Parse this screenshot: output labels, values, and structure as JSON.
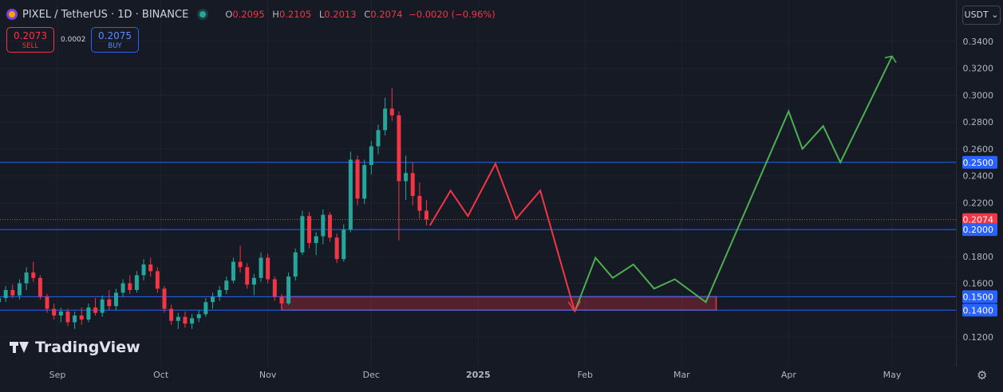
{
  "header": {
    "symbol": "PIXEL / TetherUS · 1D · BINANCE",
    "ohlc": {
      "o_label": "O",
      "o": "0.2095",
      "h_label": "H",
      "h": "0.2105",
      "l_label": "L",
      "l": "0.2013",
      "c_label": "C",
      "c": "0.2074",
      "change": "−0.0020 (−0.96%)"
    }
  },
  "trade": {
    "sell_price": "0.2073",
    "sell_label": "SELL",
    "spread": "0.0002",
    "buy_price": "0.2075",
    "buy_label": "BUY"
  },
  "currency_button": "USDT",
  "watermark": "TradingView",
  "colors": {
    "up": "#26a69a",
    "down": "#f23645",
    "hline": "#2962ff",
    "path_down": "#f23645",
    "path_up": "#4caf50",
    "zone": "#f23645",
    "background": "#161a25"
  },
  "chart_data": {
    "type": "candlestick",
    "instrument": "PIXEL / TetherUS",
    "interval": "1D",
    "y_ticks": [
      "0.3400",
      "0.3200",
      "0.3000",
      "0.2800",
      "0.2600",
      "0.2400",
      "0.2200",
      "0.1800",
      "0.1600",
      "0.1200"
    ],
    "x_ticks": [
      "Sep",
      "Oct",
      "Nov",
      "Dec",
      "2025",
      "Feb",
      "Mar",
      "Apr",
      "May"
    ],
    "ylim": [
      0.11,
      0.355
    ],
    "grid": true,
    "horizontal_lines": [
      0.25,
      0.2,
      0.15,
      0.14
    ],
    "price_labels": [
      {
        "label": "0.2500",
        "value": 0.25,
        "color": "#2962ff"
      },
      {
        "label": "0.2074",
        "value": 0.2074,
        "color": "#f23645"
      },
      {
        "label": "0.2000",
        "value": 0.2,
        "color": "#2962ff"
      },
      {
        "label": "0.1500",
        "value": 0.15,
        "color": "#2962ff"
      },
      {
        "label": "0.1400",
        "value": 0.14,
        "color": "#2962ff"
      }
    ],
    "last_price": 0.2074,
    "zone": {
      "start": "2024-11-05",
      "end": "2025-03-11",
      "low": 0.14,
      "high": 0.15
    },
    "projection_down": [
      [
        "2024-12-18",
        0.203
      ],
      [
        "2024-12-24",
        0.229
      ],
      [
        "2024-12-29",
        0.21
      ],
      [
        "2025-01-06",
        0.249
      ],
      [
        "2025-01-12",
        0.208
      ],
      [
        "2025-01-19",
        0.229
      ],
      [
        "2025-01-29",
        0.139
      ]
    ],
    "projection_up": [
      [
        "2025-01-29",
        0.139
      ],
      [
        "2025-02-04",
        0.179
      ],
      [
        "2025-02-09",
        0.164
      ],
      [
        "2025-02-15",
        0.174
      ],
      [
        "2025-02-21",
        0.156
      ],
      [
        "2025-02-27",
        0.163
      ],
      [
        "2025-03-08",
        0.146
      ],
      [
        "2025-04-01",
        0.288
      ],
      [
        "2025-04-05",
        0.26
      ],
      [
        "2025-04-11",
        0.277
      ],
      [
        "2025-04-16",
        0.25
      ],
      [
        "2025-05-01",
        0.329
      ]
    ],
    "candles": [
      [
        "2024-08-15",
        0.146,
        0.153,
        0.142,
        0.149
      ],
      [
        "2024-08-17",
        0.149,
        0.158,
        0.146,
        0.155
      ],
      [
        "2024-08-19",
        0.155,
        0.159,
        0.149,
        0.151
      ],
      [
        "2024-08-21",
        0.151,
        0.163,
        0.148,
        0.16
      ],
      [
        "2024-08-23",
        0.16,
        0.172,
        0.155,
        0.168
      ],
      [
        "2024-08-25",
        0.168,
        0.176,
        0.161,
        0.164
      ],
      [
        "2024-08-27",
        0.164,
        0.166,
        0.148,
        0.15
      ],
      [
        "2024-08-29",
        0.15,
        0.152,
        0.138,
        0.141
      ],
      [
        "2024-08-31",
        0.141,
        0.145,
        0.133,
        0.136
      ],
      [
        "2024-09-02",
        0.136,
        0.142,
        0.131,
        0.139
      ],
      [
        "2024-09-04",
        0.139,
        0.141,
        0.128,
        0.131
      ],
      [
        "2024-09-06",
        0.131,
        0.139,
        0.126,
        0.136
      ],
      [
        "2024-09-08",
        0.136,
        0.142,
        0.129,
        0.133
      ],
      [
        "2024-09-10",
        0.133,
        0.145,
        0.131,
        0.142
      ],
      [
        "2024-09-12",
        0.142,
        0.149,
        0.136,
        0.138
      ],
      [
        "2024-09-14",
        0.138,
        0.151,
        0.135,
        0.148
      ],
      [
        "2024-09-16",
        0.148,
        0.155,
        0.14,
        0.143
      ],
      [
        "2024-09-18",
        0.143,
        0.156,
        0.14,
        0.153
      ],
      [
        "2024-09-20",
        0.153,
        0.163,
        0.15,
        0.16
      ],
      [
        "2024-09-22",
        0.16,
        0.166,
        0.152,
        0.155
      ],
      [
        "2024-09-24",
        0.155,
        0.169,
        0.153,
        0.166
      ],
      [
        "2024-09-26",
        0.166,
        0.178,
        0.162,
        0.174
      ],
      [
        "2024-09-28",
        0.174,
        0.179,
        0.165,
        0.169
      ],
      [
        "2024-09-30",
        0.169,
        0.172,
        0.153,
        0.156
      ],
      [
        "2024-10-02",
        0.156,
        0.158,
        0.138,
        0.141
      ],
      [
        "2024-10-04",
        0.141,
        0.144,
        0.129,
        0.132
      ],
      [
        "2024-10-06",
        0.132,
        0.138,
        0.126,
        0.135
      ],
      [
        "2024-10-08",
        0.135,
        0.139,
        0.127,
        0.13
      ],
      [
        "2024-10-10",
        0.13,
        0.137,
        0.126,
        0.134
      ],
      [
        "2024-10-12",
        0.134,
        0.14,
        0.131,
        0.137
      ],
      [
        "2024-10-14",
        0.137,
        0.149,
        0.135,
        0.146
      ],
      [
        "2024-10-16",
        0.146,
        0.153,
        0.141,
        0.15
      ],
      [
        "2024-10-18",
        0.15,
        0.158,
        0.147,
        0.155
      ],
      [
        "2024-10-20",
        0.155,
        0.165,
        0.152,
        0.162
      ],
      [
        "2024-10-22",
        0.162,
        0.179,
        0.16,
        0.176
      ],
      [
        "2024-10-24",
        0.176,
        0.188,
        0.168,
        0.172
      ],
      [
        "2024-10-26",
        0.172,
        0.175,
        0.156,
        0.159
      ],
      [
        "2024-10-28",
        0.159,
        0.167,
        0.151,
        0.164
      ],
      [
        "2024-10-30",
        0.164,
        0.183,
        0.161,
        0.179
      ],
      [
        "2024-11-01",
        0.179,
        0.182,
        0.16,
        0.163
      ],
      [
        "2024-11-03",
        0.163,
        0.165,
        0.147,
        0.15
      ],
      [
        "2024-11-05",
        0.15,
        0.152,
        0.141,
        0.145
      ],
      [
        "2024-11-07",
        0.145,
        0.168,
        0.144,
        0.165
      ],
      [
        "2024-11-09",
        0.165,
        0.186,
        0.162,
        0.183
      ],
      [
        "2024-11-11",
        0.183,
        0.214,
        0.181,
        0.21
      ],
      [
        "2024-11-13",
        0.21,
        0.213,
        0.186,
        0.19
      ],
      [
        "2024-11-15",
        0.19,
        0.198,
        0.181,
        0.195
      ],
      [
        "2024-11-17",
        0.195,
        0.215,
        0.189,
        0.211
      ],
      [
        "2024-11-19",
        0.211,
        0.213,
        0.191,
        0.194
      ],
      [
        "2024-11-21",
        0.194,
        0.197,
        0.175,
        0.178
      ],
      [
        "2024-11-23",
        0.178,
        0.204,
        0.176,
        0.2
      ],
      [
        "2024-11-25",
        0.2,
        0.258,
        0.198,
        0.252
      ],
      [
        "2024-11-27",
        0.252,
        0.255,
        0.218,
        0.223
      ],
      [
        "2024-11-29",
        0.223,
        0.252,
        0.219,
        0.248
      ],
      [
        "2024-12-01",
        0.248,
        0.266,
        0.241,
        0.262
      ],
      [
        "2024-12-03",
        0.262,
        0.278,
        0.256,
        0.274
      ],
      [
        "2024-12-05",
        0.274,
        0.298,
        0.27,
        0.29
      ],
      [
        "2024-12-07",
        0.29,
        0.305,
        0.281,
        0.285
      ],
      [
        "2024-12-09",
        0.285,
        0.288,
        0.192,
        0.236
      ],
      [
        "2024-12-11",
        0.236,
        0.255,
        0.222,
        0.242
      ],
      [
        "2024-12-13",
        0.242,
        0.25,
        0.218,
        0.225
      ],
      [
        "2024-12-15",
        0.225,
        0.235,
        0.208,
        0.214
      ],
      [
        "2024-12-17",
        0.214,
        0.222,
        0.203,
        0.2074
      ]
    ]
  }
}
